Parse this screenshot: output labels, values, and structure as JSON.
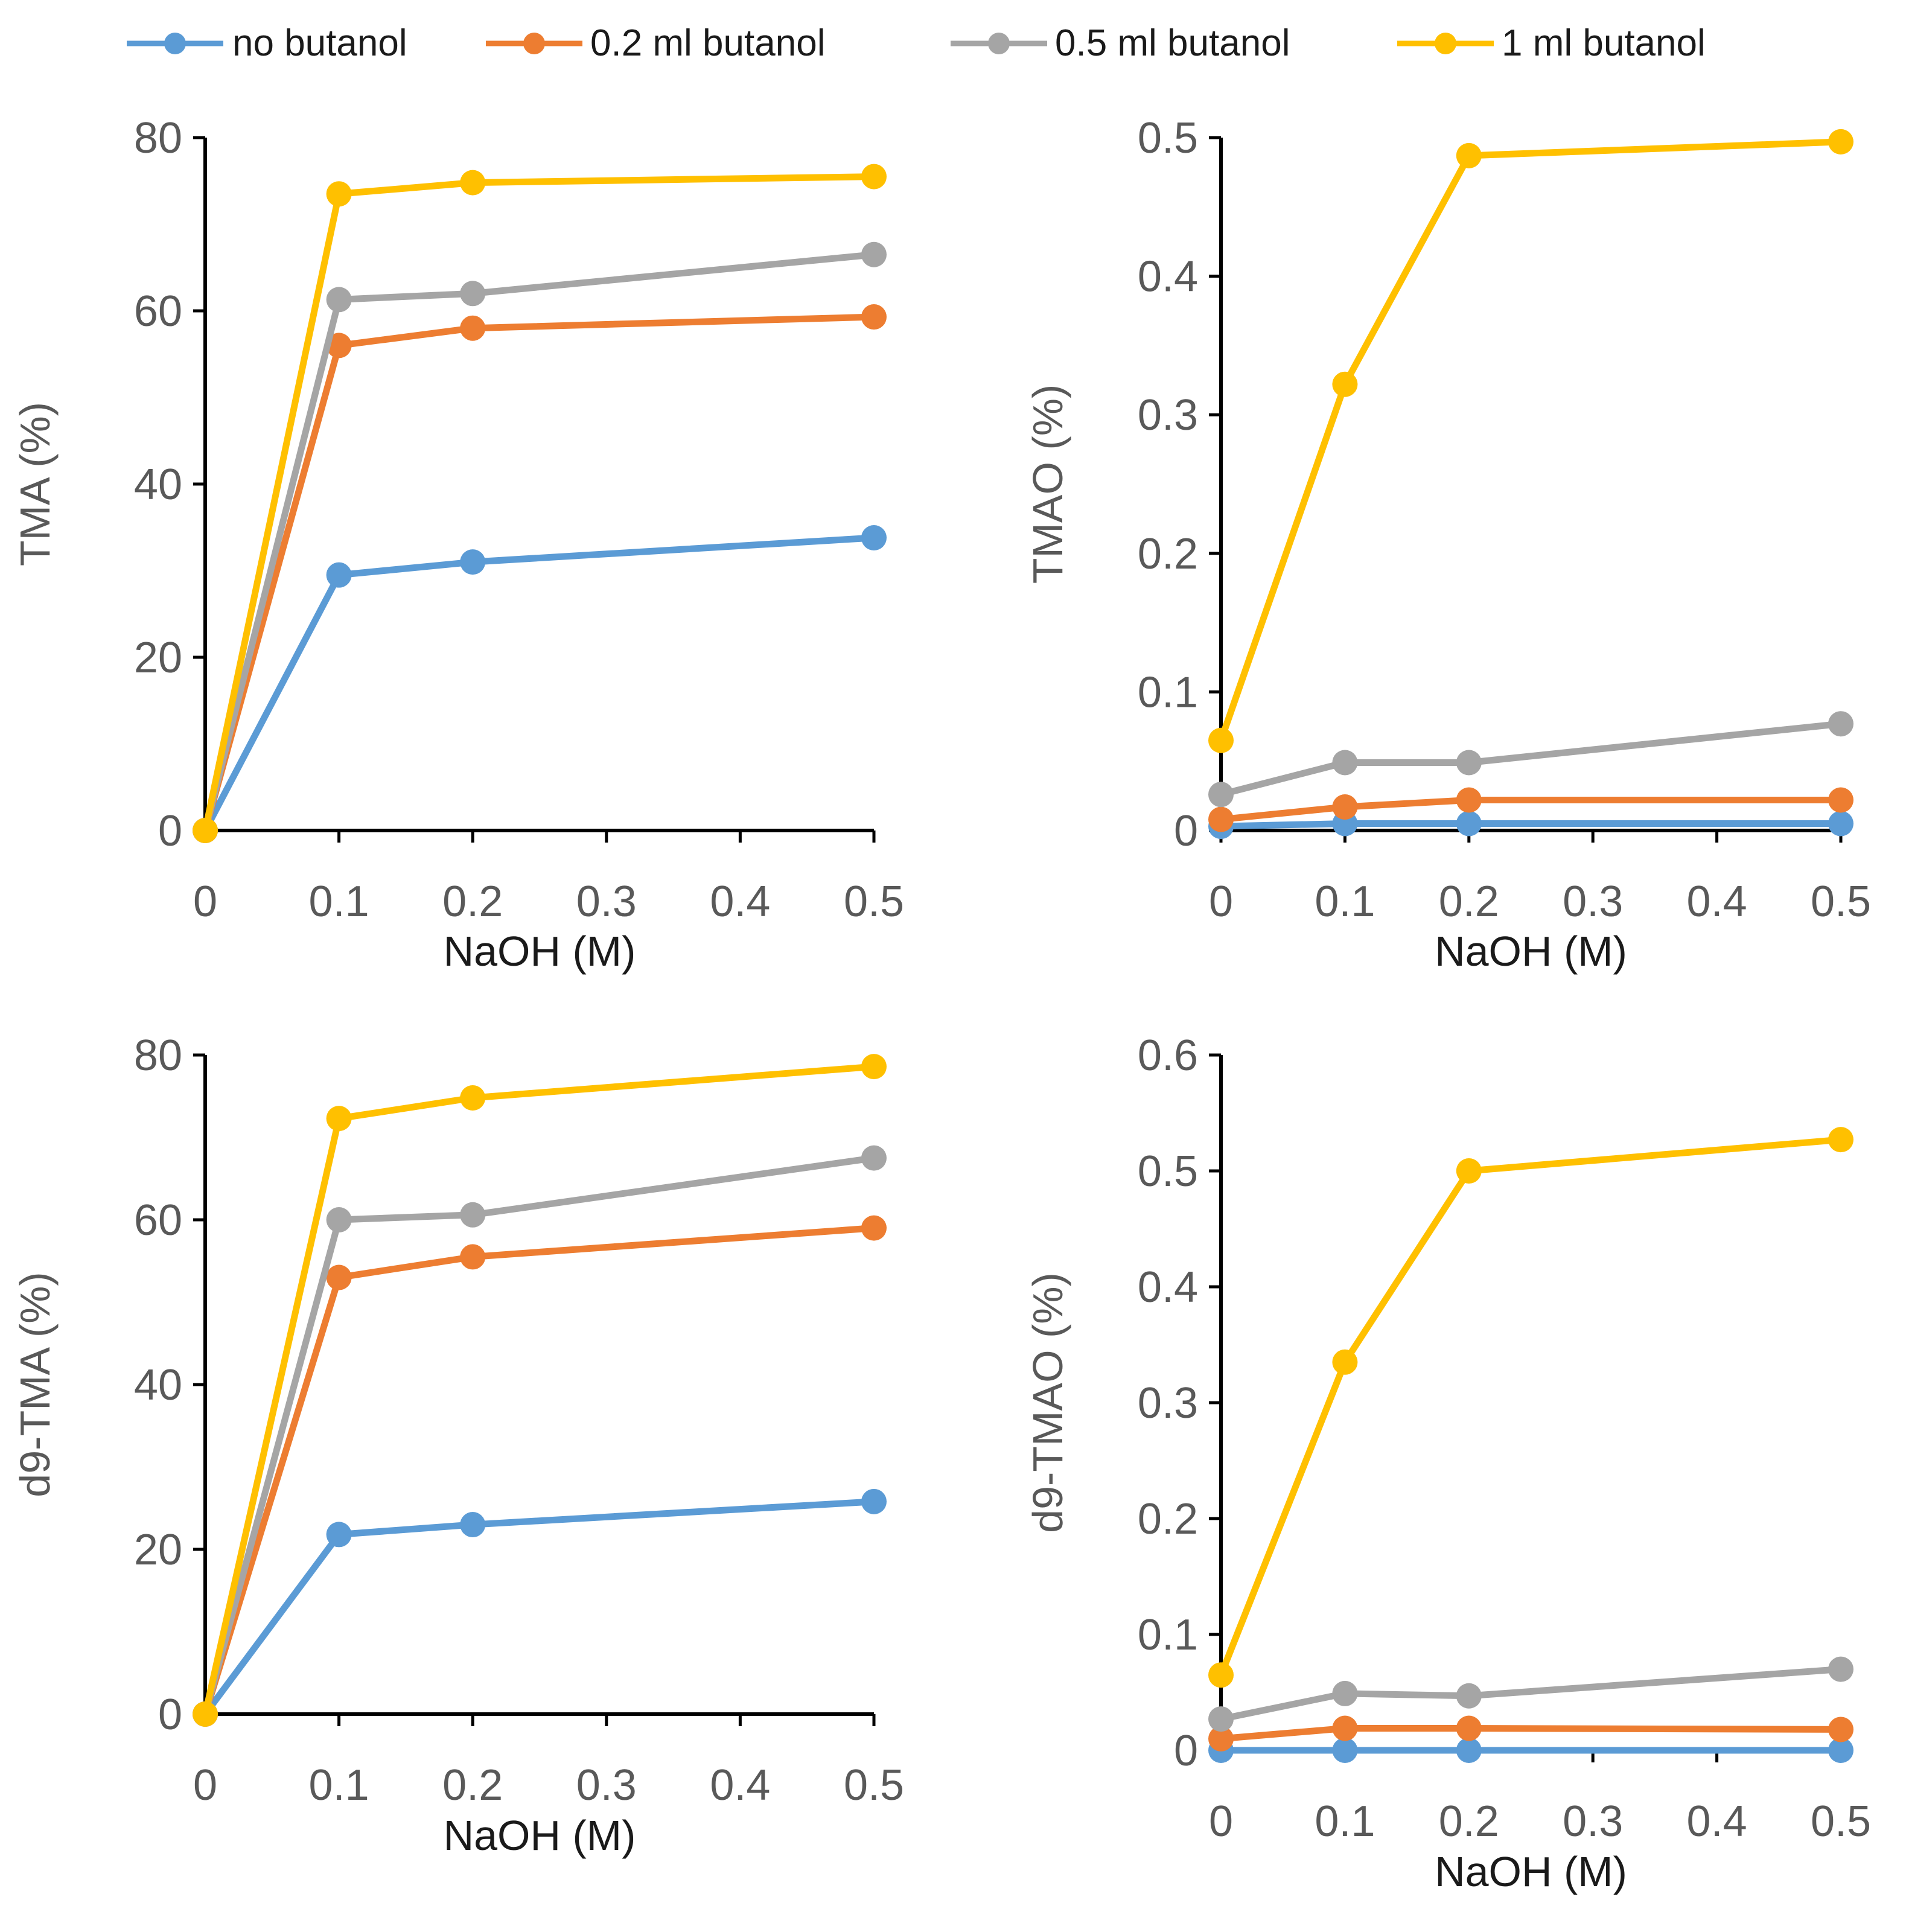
{
  "legend": [
    {
      "name": "no butanol",
      "color": "#5B9BD5"
    },
    {
      "name": "0.2 ml butanol",
      "color": "#ED7D31"
    },
    {
      "name": "0.5 ml butanol",
      "color": "#A5A5A5"
    },
    {
      "name": "1 ml butanol",
      "color": "#FFC000"
    }
  ],
  "chart_data": [
    {
      "type": "line",
      "id": "tma",
      "xlabel": "NaOH (M)",
      "ylabel": "TMA (%)",
      "x": [
        0,
        0.1,
        0.2,
        0.5
      ],
      "xlim": [
        0,
        0.5
      ],
      "xticks": [
        "0",
        "0.1",
        "0.2",
        "0.3",
        "0.4",
        "0.5"
      ],
      "xtick_values": [
        0,
        0.1,
        0.2,
        0.3,
        0.4,
        0.5
      ],
      "ylim": [
        0,
        80
      ],
      "yticks": [
        "0",
        "20",
        "40",
        "60",
        "80"
      ],
      "ytick_values": [
        0,
        20,
        40,
        60,
        80
      ],
      "series": [
        {
          "name": "no butanol",
          "values": [
            0,
            29.5,
            31,
            33.8
          ]
        },
        {
          "name": "0.2 ml butanol",
          "values": [
            0,
            56,
            58,
            59.3
          ]
        },
        {
          "name": "0.5 ml butanol",
          "values": [
            0,
            61.3,
            62,
            66.5
          ]
        },
        {
          "name": "1 ml butanol",
          "values": [
            0,
            73.5,
            74.8,
            75.5
          ]
        }
      ]
    },
    {
      "type": "line",
      "id": "tmao",
      "xlabel": "NaOH (M)",
      "ylabel": "TMAO (%)",
      "x": [
        0,
        0.1,
        0.2,
        0.5
      ],
      "xlim": [
        0,
        0.5
      ],
      "xticks": [
        "0",
        "0.1",
        "0.2",
        "0.3",
        "0.4",
        "0.5"
      ],
      "xtick_values": [
        0,
        0.1,
        0.2,
        0.3,
        0.4,
        0.5
      ],
      "ylim": [
        0,
        0.5
      ],
      "yticks": [
        "0",
        "0.1",
        "0.2",
        "0.3",
        "0.4",
        "0.5"
      ],
      "ytick_values": [
        0,
        0.1,
        0.2,
        0.3,
        0.4,
        0.5
      ],
      "series": [
        {
          "name": "no butanol",
          "values": [
            0.003,
            0.005,
            0.005,
            0.005
          ]
        },
        {
          "name": "0.2 ml butanol",
          "values": [
            0.008,
            0.017,
            0.022,
            0.022
          ]
        },
        {
          "name": "0.5 ml butanol",
          "values": [
            0.026,
            0.049,
            0.049,
            0.077
          ]
        },
        {
          "name": "1 ml butanol",
          "values": [
            0.065,
            0.322,
            0.487,
            0.497
          ]
        }
      ]
    },
    {
      "type": "line",
      "id": "d9-tma",
      "xlabel": "NaOH (M)",
      "ylabel": "d9-TMA (%)",
      "x": [
        0,
        0.1,
        0.2,
        0.5
      ],
      "xlim": [
        0,
        0.5
      ],
      "xticks": [
        "0",
        "0.1",
        "0.2",
        "0.3",
        "0.4",
        "0.5"
      ],
      "xtick_values": [
        0,
        0.1,
        0.2,
        0.3,
        0.4,
        0.5
      ],
      "ylim": [
        0,
        80
      ],
      "yticks": [
        "0",
        "20",
        "40",
        "60",
        "80"
      ],
      "ytick_values": [
        0,
        20,
        40,
        60,
        80
      ],
      "series": [
        {
          "name": "no butanol",
          "values": [
            0,
            21.8,
            23,
            25.8
          ]
        },
        {
          "name": "0.2 ml butanol",
          "values": [
            0,
            53,
            55.5,
            59
          ]
        },
        {
          "name": "0.5 ml butanol",
          "values": [
            0,
            60,
            60.6,
            67.5
          ]
        },
        {
          "name": "1 ml butanol",
          "values": [
            0,
            72.3,
            74.8,
            78.6
          ]
        }
      ]
    },
    {
      "type": "line",
      "id": "d9-tmao",
      "xlabel": "NaOH (M)",
      "ylabel": "d9-TMAO (%)",
      "x": [
        0,
        0.1,
        0.2,
        0.5
      ],
      "xlim": [
        0,
        0.5
      ],
      "xticks": [
        "0",
        "0.1",
        "0.2",
        "0.3",
        "0.4",
        "0.5"
      ],
      "xtick_values": [
        0,
        0.1,
        0.2,
        0.3,
        0.4,
        0.5
      ],
      "ylim": [
        0,
        0.6
      ],
      "yticks": [
        "0",
        "0.1",
        "0.2",
        "0.3",
        "0.4",
        "0.5",
        "0.6"
      ],
      "ytick_values": [
        0,
        0.1,
        0.2,
        0.3,
        0.4,
        0.5,
        0.6
      ],
      "series": [
        {
          "name": "no butanol",
          "values": [
            0.0,
            0.0,
            0.0,
            0.0
          ]
        },
        {
          "name": "0.2 ml butanol",
          "values": [
            0.01,
            0.019,
            0.019,
            0.018
          ]
        },
        {
          "name": "0.5 ml butanol",
          "values": [
            0.027,
            0.049,
            0.047,
            0.07
          ]
        },
        {
          "name": "1 ml butanol",
          "values": [
            0.065,
            0.335,
            0.5,
            0.527
          ]
        }
      ]
    }
  ]
}
